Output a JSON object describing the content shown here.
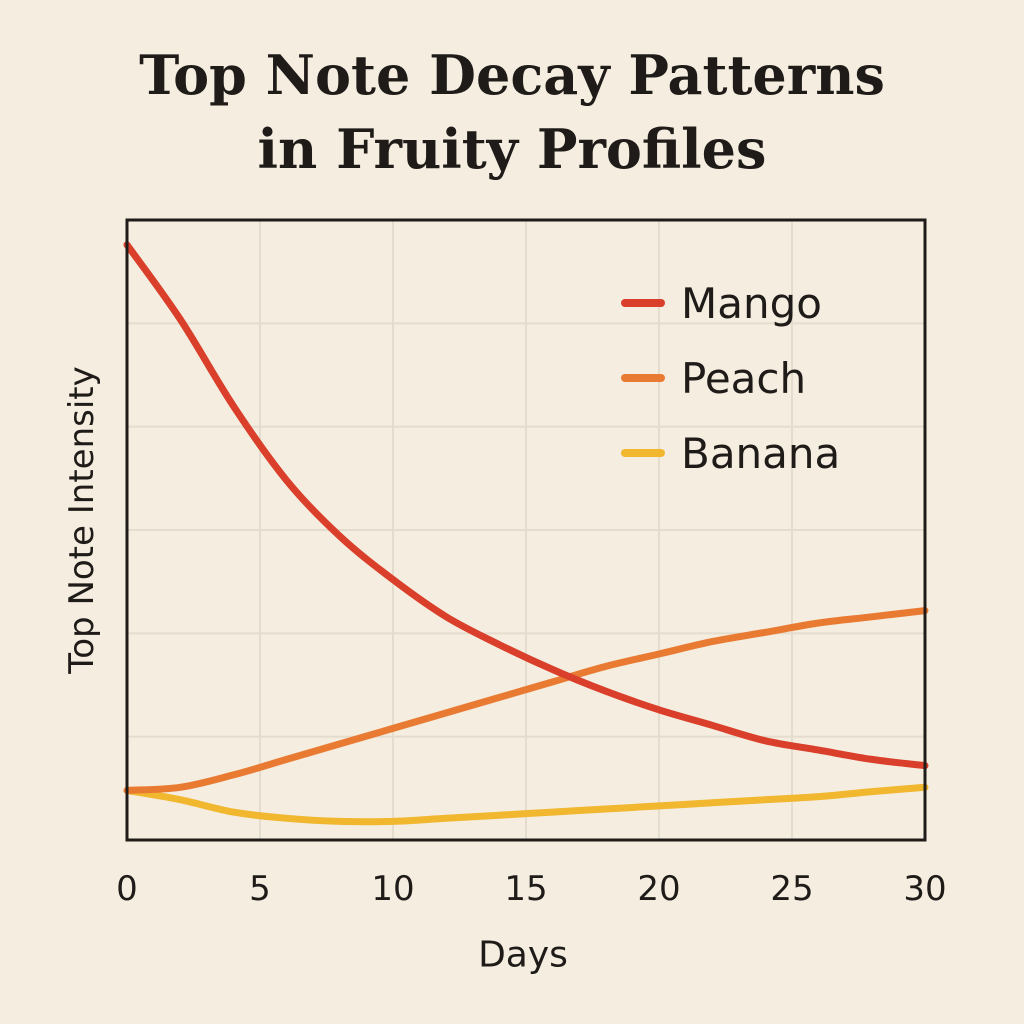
{
  "chart_data": {
    "type": "line",
    "title_lines": [
      "Top Note Decay Patterns",
      "in Fruity Profiles"
    ],
    "xlabel": "Days",
    "ylabel": "Top Note Intensity",
    "xlim": [
      0,
      30
    ],
    "ylim": [
      0,
      10
    ],
    "x_ticks": [
      0,
      5,
      10,
      15,
      20,
      25,
      30
    ],
    "grid": true,
    "legend_position": "top-right",
    "series": [
      {
        "name": "Mango",
        "color": "#d93f2a",
        "points": [
          [
            0,
            9.6
          ],
          [
            2,
            8.4
          ],
          [
            4,
            7.0
          ],
          [
            6,
            5.8
          ],
          [
            8,
            4.9
          ],
          [
            10,
            4.2
          ],
          [
            12,
            3.6
          ],
          [
            14,
            3.15
          ],
          [
            16,
            2.75
          ],
          [
            18,
            2.4
          ],
          [
            20,
            2.1
          ],
          [
            22,
            1.85
          ],
          [
            24,
            1.6
          ],
          [
            26,
            1.45
          ],
          [
            28,
            1.3
          ],
          [
            30,
            1.2
          ]
        ]
      },
      {
        "name": "Peach",
        "color": "#e97a32",
        "points": [
          [
            0,
            0.8
          ],
          [
            2,
            0.85
          ],
          [
            4,
            1.05
          ],
          [
            6,
            1.3
          ],
          [
            8,
            1.55
          ],
          [
            10,
            1.8
          ],
          [
            12,
            2.05
          ],
          [
            14,
            2.3
          ],
          [
            16,
            2.55
          ],
          [
            18,
            2.8
          ],
          [
            20,
            3.0
          ],
          [
            22,
            3.2
          ],
          [
            24,
            3.35
          ],
          [
            26,
            3.5
          ],
          [
            28,
            3.6
          ],
          [
            30,
            3.7
          ]
        ]
      },
      {
        "name": "Banana",
        "color": "#f0b72f",
        "points": [
          [
            0,
            0.8
          ],
          [
            2,
            0.65
          ],
          [
            4,
            0.45
          ],
          [
            6,
            0.35
          ],
          [
            8,
            0.3
          ],
          [
            10,
            0.3
          ],
          [
            12,
            0.35
          ],
          [
            14,
            0.4
          ],
          [
            16,
            0.45
          ],
          [
            18,
            0.5
          ],
          [
            20,
            0.55
          ],
          [
            22,
            0.6
          ],
          [
            24,
            0.65
          ],
          [
            26,
            0.7
          ],
          [
            28,
            0.78
          ],
          [
            30,
            0.85
          ]
        ]
      }
    ]
  }
}
